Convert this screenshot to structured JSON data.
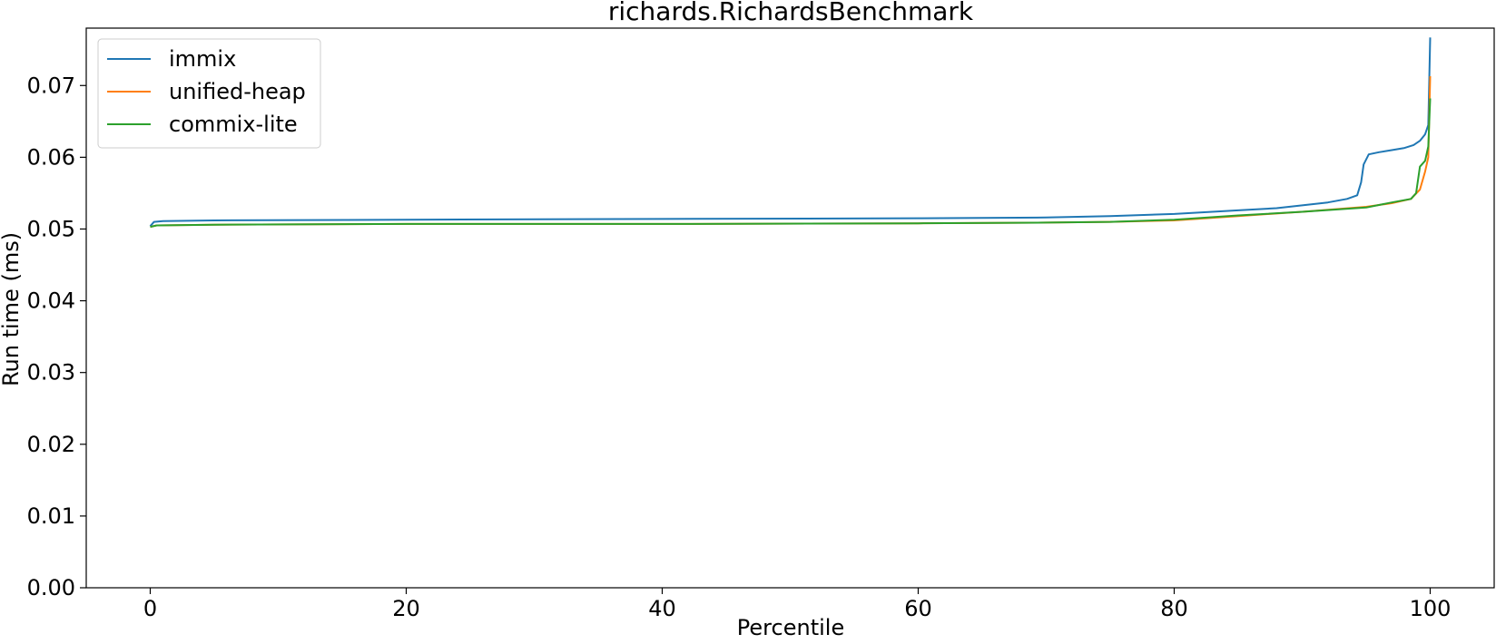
{
  "chart_data": {
    "type": "line",
    "title": "richards.RichardsBenchmark",
    "xlabel": "Percentile",
    "ylabel": "Run time (ms)",
    "xlim": [
      -5,
      105
    ],
    "ylim": [
      0.0,
      0.078
    ],
    "xticks": [
      0,
      20,
      40,
      60,
      80,
      100
    ],
    "xtick_labels": [
      "0",
      "20",
      "40",
      "60",
      "80",
      "100"
    ],
    "yticks": [
      0.0,
      0.01,
      0.02,
      0.03,
      0.04,
      0.05,
      0.06,
      0.07
    ],
    "ytick_labels": [
      "0.00",
      "0.01",
      "0.02",
      "0.03",
      "0.04",
      "0.05",
      "0.06",
      "0.07"
    ],
    "legend_position": "upper-left",
    "grid": false,
    "series": [
      {
        "name": "immix",
        "color": "#1f77b4",
        "x": [
          0,
          0.3,
          1,
          5,
          20,
          40,
          60,
          70,
          75,
          80,
          85,
          88,
          90,
          92,
          93.5,
          94.3,
          94.6,
          94.8,
          95.2,
          96,
          97,
          98,
          98.7,
          99.2,
          99.6,
          99.85,
          100
        ],
        "y": [
          0.0504,
          0.051,
          0.0511,
          0.0512,
          0.0513,
          0.0514,
          0.0515,
          0.0516,
          0.0518,
          0.0521,
          0.0526,
          0.0529,
          0.0533,
          0.0537,
          0.0542,
          0.0547,
          0.0565,
          0.059,
          0.0604,
          0.0607,
          0.061,
          0.0613,
          0.0617,
          0.0623,
          0.0632,
          0.0645,
          0.0767
        ]
      },
      {
        "name": "unified-heap",
        "color": "#ff7f0e",
        "x": [
          0,
          0.5,
          5,
          20,
          40,
          60,
          70,
          75,
          80,
          85,
          90,
          95,
          97,
          98.5,
          99.2,
          99.6,
          99.85,
          100
        ],
        "y": [
          0.0503,
          0.0505,
          0.0506,
          0.0507,
          0.0507,
          0.0508,
          0.0509,
          0.051,
          0.0512,
          0.0518,
          0.0524,
          0.0531,
          0.0536,
          0.0542,
          0.0555,
          0.058,
          0.06,
          0.0713
        ]
      },
      {
        "name": "commix-lite",
        "color": "#2ca02c",
        "x": [
          0,
          0.5,
          5,
          20,
          40,
          60,
          70,
          75,
          80,
          85,
          90,
          95,
          97,
          98.5,
          98.9,
          99.2,
          99.6,
          99.85,
          100
        ],
        "y": [
          0.0503,
          0.0505,
          0.0506,
          0.0507,
          0.0507,
          0.0508,
          0.0509,
          0.051,
          0.0513,
          0.0519,
          0.0524,
          0.053,
          0.0537,
          0.0542,
          0.055,
          0.0587,
          0.0595,
          0.0615,
          0.0682
        ]
      }
    ]
  }
}
